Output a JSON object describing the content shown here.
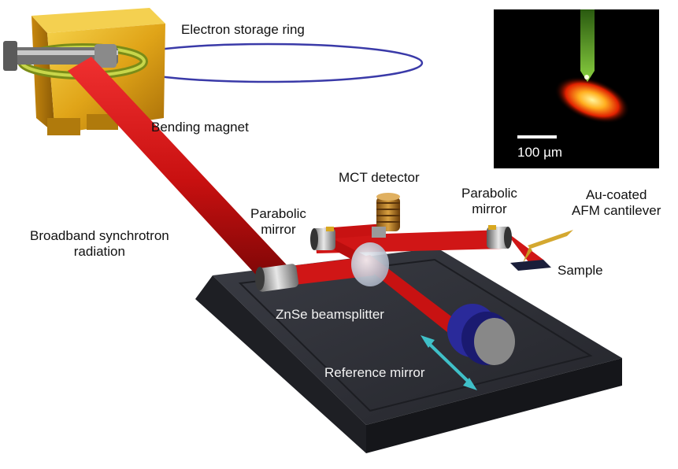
{
  "labels": {
    "electron_storage_ring": "Electron storage ring",
    "bending_magnet": "Bending magnet",
    "mct_detector": "MCT detector",
    "parabolic_mirror_left": [
      "Parabolic",
      "mirror"
    ],
    "parabolic_mirror_right": [
      "Parabolic",
      "mirror"
    ],
    "au_cantilever": [
      "Au-coated",
      "AFM cantilever"
    ],
    "broadband_radiation": [
      "Broadband synchrotron",
      "radiation"
    ],
    "sample": "Sample",
    "znse_beamsplitter": "ZnSe beamsplitter",
    "reference_mirror": "Reference mirror"
  },
  "inset": {
    "scale_bar": "100 µm"
  },
  "colors": {
    "beam": "#d81818",
    "beam_dark": "#8c0c0c",
    "magnet": "#e8b020",
    "platform": "#2e3038",
    "ring": "#3a3aa8",
    "arrow": "#3fc0c8",
    "tip": "#5aa02a"
  }
}
